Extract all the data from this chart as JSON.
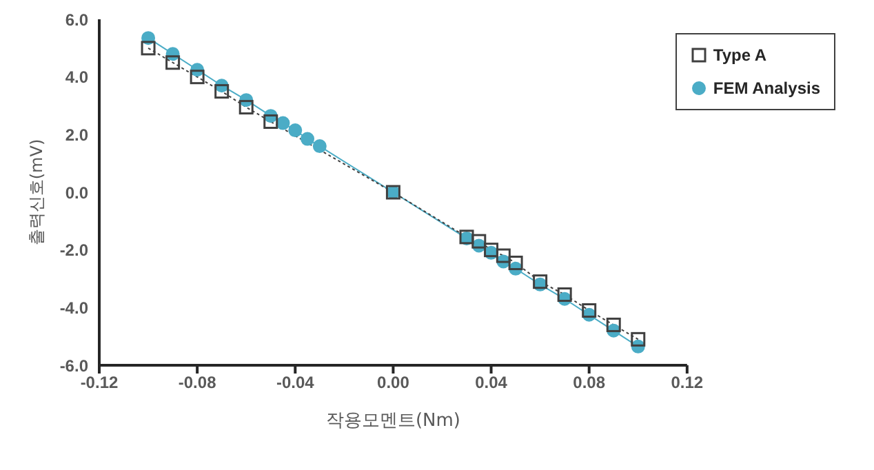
{
  "chart_data": {
    "type": "line",
    "xlabel": "작용모멘트(Nm)",
    "ylabel": "출력신호(mV)",
    "xlim": [
      -0.12,
      0.12
    ],
    "xticks": [
      -0.12,
      -0.08,
      -0.04,
      {
        "value": 0,
        "label": "0.00"
      },
      0.04,
      0.08,
      0.12
    ],
    "ylim": [
      -6,
      6
    ],
    "yticks": [
      {
        "value": -6,
        "label": "-6.0"
      },
      {
        "value": -4,
        "label": "-4.0"
      },
      {
        "value": -2,
        "label": "-2.0"
      },
      {
        "value": 0,
        "label": "0.0"
      },
      {
        "value": 2,
        "label": "2.0"
      },
      {
        "value": 4,
        "label": "4.0"
      },
      {
        "value": 6,
        "label": "6.0"
      }
    ],
    "grid": false,
    "legend": "top right",
    "series": [
      {
        "name": "Type A",
        "color": "#404040",
        "marker": "square",
        "line_style": "dotted",
        "x": [
          -0.1,
          -0.09,
          -0.08,
          -0.07,
          -0.06,
          -0.05,
          0,
          0.03,
          0.035,
          0.04,
          0.045,
          0.05,
          0.06,
          0.07,
          0.08,
          0.09,
          0.1
        ],
        "values": [
          5.0,
          4.5,
          4.0,
          3.5,
          2.95,
          2.45,
          0,
          -1.55,
          -1.7,
          -2.0,
          -2.2,
          -2.45,
          -3.1,
          -3.55,
          -4.1,
          -4.6,
          -5.1
        ]
      },
      {
        "name": "FEM Analysis",
        "color": "#4bacc6",
        "marker": "circle",
        "line_style": "solid",
        "x": [
          -0.1,
          -0.09,
          -0.08,
          -0.07,
          -0.06,
          -0.05,
          -0.045,
          -0.04,
          -0.035,
          -0.03,
          0,
          0.03,
          0.035,
          0.04,
          0.045,
          0.05,
          0.06,
          0.07,
          0.08,
          0.09,
          0.1
        ],
        "values": [
          5.35,
          4.8,
          4.25,
          3.7,
          3.2,
          2.65,
          2.4,
          2.15,
          1.85,
          1.6,
          0,
          -1.6,
          -1.85,
          -2.1,
          -2.4,
          -2.65,
          -3.2,
          -3.7,
          -4.25,
          -4.8,
          -5.35
        ]
      }
    ]
  }
}
